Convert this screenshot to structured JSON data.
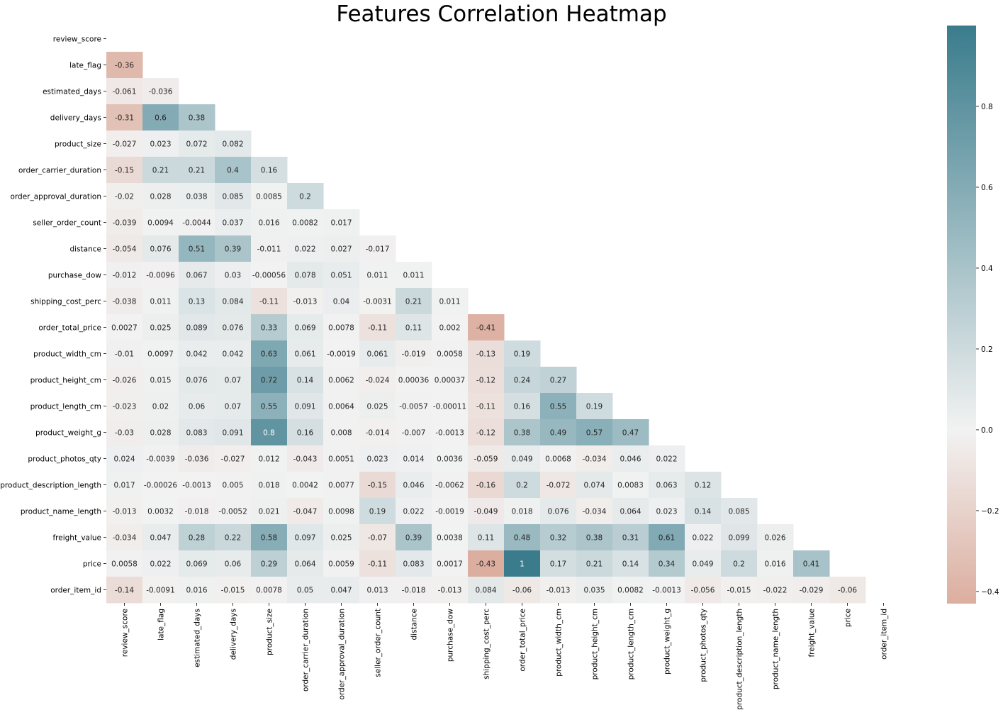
{
  "chart_data": {
    "type": "heatmap",
    "title": "Features Correlation Heatmap",
    "mask": "upper-triangle-including-diagonal",
    "labels": [
      "review_score",
      "late_flag",
      "estimated_days",
      "delivery_days",
      "product_size",
      "order_carrier_duration",
      "order_approval_duration",
      "seller_order_count",
      "distance",
      "purchase_dow",
      "shipping_cost_perc",
      "order_total_price",
      "product_width_cm",
      "product_height_cm",
      "product_length_cm",
      "product_weight_g",
      "product_photos_qty",
      "product_description_length",
      "product_name_length",
      "freight_value",
      "price",
      "order_item_id"
    ],
    "rows": [
      [],
      [
        "-0.36"
      ],
      [
        "-0.061",
        "-0.036"
      ],
      [
        "-0.31",
        "0.6",
        "0.38"
      ],
      [
        "-0.027",
        "0.023",
        "0.072",
        "0.082"
      ],
      [
        "-0.15",
        "0.21",
        "0.21",
        "0.4",
        "0.16"
      ],
      [
        "-0.02",
        "0.028",
        "0.038",
        "0.085",
        "0.0085",
        "0.2"
      ],
      [
        "-0.039",
        "0.0094",
        "-0.0044",
        "0.037",
        "0.016",
        "0.0082",
        "0.017"
      ],
      [
        "-0.054",
        "0.076",
        "0.51",
        "0.39",
        "-0.011",
        "0.022",
        "0.027",
        "-0.017"
      ],
      [
        "-0.012",
        "-0.0096",
        "0.067",
        "0.03",
        "-0.00056",
        "0.078",
        "0.051",
        "0.011",
        "0.011"
      ],
      [
        "-0.038",
        "0.011",
        "0.13",
        "0.084",
        "-0.11",
        "-0.013",
        "0.04",
        "-0.0031",
        "0.21",
        "0.011"
      ],
      [
        "0.0027",
        "0.025",
        "0.089",
        "0.076",
        "0.33",
        "0.069",
        "0.0078",
        "-0.11",
        "0.11",
        "0.002",
        "-0.41"
      ],
      [
        "-0.01",
        "0.0097",
        "0.042",
        "0.042",
        "0.63",
        "0.061",
        "-0.0019",
        "0.061",
        "-0.019",
        "0.0058",
        "-0.13",
        "0.19"
      ],
      [
        "-0.026",
        "0.015",
        "0.076",
        "0.07",
        "0.72",
        "0.14",
        "0.0062",
        "-0.024",
        "0.00036",
        "0.00037",
        "-0.12",
        "0.24",
        "0.27"
      ],
      [
        "-0.023",
        "0.02",
        "0.06",
        "0.07",
        "0.55",
        "0.091",
        "0.0064",
        "0.025",
        "-0.0057",
        "-0.00011",
        "-0.11",
        "0.16",
        "0.55",
        "0.19"
      ],
      [
        "-0.03",
        "0.028",
        "0.083",
        "0.091",
        "0.8",
        "0.16",
        "0.008",
        "-0.014",
        "-0.007",
        "-0.0013",
        "-0.12",
        "0.38",
        "0.49",
        "0.57",
        "0.47"
      ],
      [
        "0.024",
        "-0.0039",
        "-0.036",
        "-0.027",
        "0.012",
        "-0.043",
        "0.0051",
        "0.023",
        "0.014",
        "0.0036",
        "-0.059",
        "0.049",
        "0.0068",
        "-0.034",
        "0.046",
        "0.022"
      ],
      [
        "0.017",
        "-0.00026",
        "-0.0013",
        "0.005",
        "0.018",
        "0.0042",
        "0.0077",
        "-0.15",
        "0.046",
        "-0.0062",
        "-0.16",
        "0.2",
        "-0.072",
        "0.074",
        "0.0083",
        "0.063",
        "0.12"
      ],
      [
        "-0.013",
        "0.0032",
        "-0.018",
        "-0.0052",
        "0.021",
        "-0.047",
        "0.0098",
        "0.19",
        "0.022",
        "-0.0019",
        "-0.049",
        "0.018",
        "0.076",
        "-0.034",
        "0.064",
        "0.023",
        "0.14",
        "0.085"
      ],
      [
        "-0.034",
        "0.047",
        "0.28",
        "0.22",
        "0.58",
        "0.097",
        "0.025",
        "-0.07",
        "0.39",
        "0.0038",
        "0.11",
        "0.48",
        "0.32",
        "0.38",
        "0.31",
        "0.61",
        "0.022",
        "0.099",
        "0.026"
      ],
      [
        "0.0058",
        "0.022",
        "0.069",
        "0.06",
        "0.29",
        "0.064",
        "0.0059",
        "-0.11",
        "0.083",
        "0.0017",
        "-0.43",
        "1",
        "0.17",
        "0.21",
        "0.14",
        "0.34",
        "0.049",
        "0.2",
        "0.016",
        "0.41"
      ],
      [
        "-0.14",
        "-0.0091",
        "0.016",
        "-0.015",
        "0.0078",
        "0.05",
        "0.047",
        "0.013",
        "-0.018",
        "-0.013",
        "0.084",
        "-0.06",
        "-0.013",
        "0.035",
        "0.0082",
        "-0.0013",
        "-0.056",
        "-0.015",
        "-0.022",
        "-0.029",
        "-0.06"
      ]
    ],
    "colorbar": {
      "vmin": -0.43,
      "vmax": 1.0,
      "ticks": [
        "0.8",
        "0.6",
        "0.4",
        "0.2",
        "0.0",
        "−0.2",
        "−0.4"
      ],
      "tick_values": [
        0.8,
        0.6,
        0.4,
        0.2,
        0.0,
        -0.2,
        -0.4
      ],
      "negative_color": "#dcae9f",
      "center_color": "#f2f2f2",
      "positive_color": "#3a7c8c"
    }
  }
}
